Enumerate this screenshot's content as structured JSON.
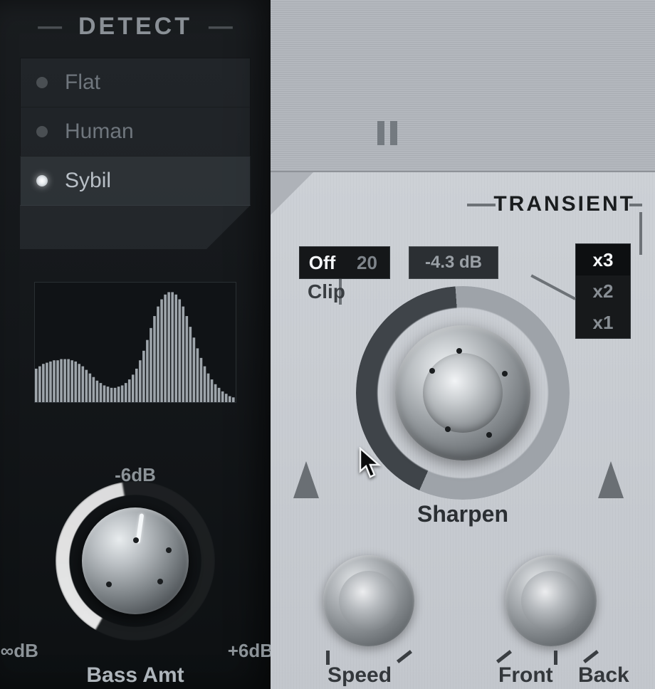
{
  "detect": {
    "title": "DETECT",
    "items": [
      {
        "label": "Flat",
        "selected": false
      },
      {
        "label": "Human",
        "selected": false
      },
      {
        "label": "Sybil",
        "selected": true
      }
    ]
  },
  "histogram": {
    "background": "#101316",
    "bar_color": "#9ea5ab",
    "n_bars": 56,
    "values": [
      28,
      30,
      32,
      33,
      34,
      35,
      35,
      36,
      36,
      36,
      35,
      34,
      32,
      30,
      27,
      24,
      21,
      18,
      16,
      14,
      13,
      12,
      12,
      13,
      14,
      16,
      19,
      23,
      28,
      35,
      43,
      52,
      62,
      72,
      80,
      86,
      90,
      92,
      92,
      90,
      86,
      80,
      72,
      63,
      54,
      45,
      37,
      30,
      24,
      19,
      15,
      12,
      9,
      7,
      5,
      4
    ]
  },
  "bass": {
    "top_label": "-6dB",
    "left_label": "-∞dB",
    "right_label": "+6dB",
    "name": "Bass Amt",
    "pointer_angle_deg": 8,
    "ring_fill_deg": 140,
    "colors": {
      "ring_active": "#ffffff",
      "pointer": "#f4f7f9"
    }
  },
  "transient": {
    "title": "TRANSIENT",
    "clip": {
      "state": "Off",
      "value": "20",
      "label": "Clip"
    },
    "db_readout": "-4.3 dB",
    "multipliers": {
      "options": [
        "x3",
        "x2",
        "x1"
      ],
      "selected": "x3"
    },
    "sharpen": {
      "label": "Sharpen",
      "arc_fill_deg": 152,
      "ring_bg": "#9ea3a9",
      "ring_active": "#3f4449"
    },
    "speed": {
      "label": "Speed"
    },
    "front": {
      "label": "Front"
    },
    "back": {
      "label": "Back"
    }
  },
  "colors": {
    "panel_dark": "#14171a",
    "panel_light": "#c6cacf",
    "text_dark": "#2b2f33",
    "text_muted": "#8a9096"
  }
}
